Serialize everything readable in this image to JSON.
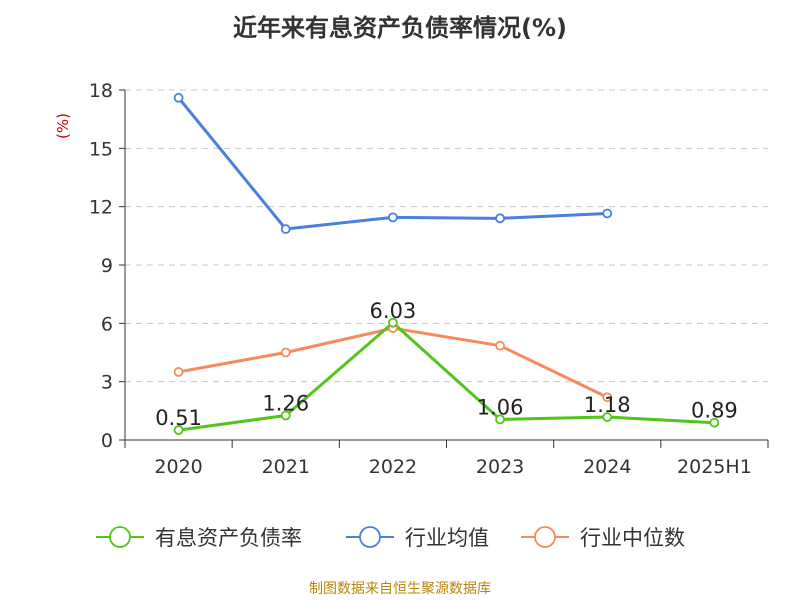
{
  "title": "近年来有息资产负债率情况(%)",
  "source": "制图数据来自恒生聚源数据库",
  "chart_data": {
    "type": "line",
    "categories": [
      "2020",
      "2021",
      "2022",
      "2023",
      "2024",
      "2025H1"
    ],
    "ylabel": "(%)",
    "ylim": [
      0,
      18
    ],
    "yticks": [
      0,
      3,
      6,
      9,
      12,
      15,
      18
    ],
    "grid": true,
    "legend_position": "bottom",
    "series": [
      {
        "name": "有息资产负债率",
        "color": "#52c41a",
        "values": [
          0.51,
          1.26,
          6.03,
          1.06,
          1.18,
          0.89
        ],
        "labels": [
          "0.51",
          "1.26",
          "6.03",
          "1.06",
          "1.18",
          "0.89"
        ]
      },
      {
        "name": "行业均值",
        "color": "#4a7fdc",
        "values": [
          17.6,
          10.85,
          11.45,
          11.4,
          11.65,
          null
        ]
      },
      {
        "name": "行业中位数",
        "color": "#f58b5a",
        "values": [
          3.5,
          4.5,
          5.75,
          4.85,
          2.2,
          null
        ]
      }
    ]
  }
}
